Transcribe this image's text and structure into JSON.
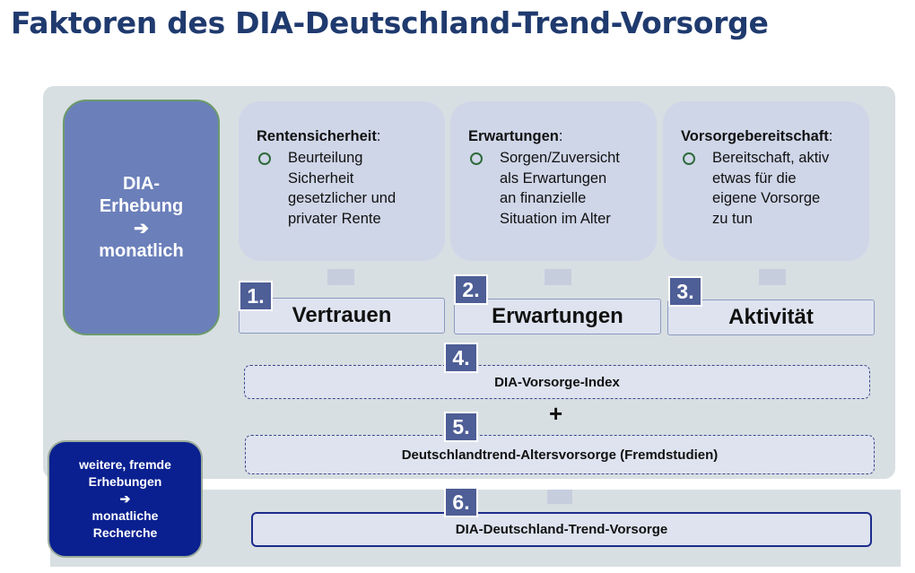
{
  "title": "Faktoren des DIA-Deutschland-Trend-Vorsorge",
  "dia_box": {
    "line1": "DIA-",
    "line2": "Erhebung",
    "arrow": "➔",
    "line3": "monatlich"
  },
  "factors": [
    {
      "heading": "Rentensicherheit",
      "colon": ":",
      "text": [
        "Beurteilung",
        "Sicherheit",
        "gesetzlicher und",
        "privater Rente"
      ]
    },
    {
      "heading": "Erwartungen",
      "colon": ":",
      "text": [
        "Sorgen/Zuversicht",
        "als Erwartungen",
        "an finanzielle",
        "Situation im Alter"
      ]
    },
    {
      "heading": "Vorsorgebereitschaft",
      "colon": ":",
      "text": [
        "Bereitschaft, aktiv",
        "etwas für die",
        "eigene Vorsorge",
        "zu tun"
      ]
    }
  ],
  "boxes": [
    {
      "num": "1.",
      "label": "Vertrauen"
    },
    {
      "num": "2.",
      "label": "Erwartungen"
    },
    {
      "num": "3.",
      "label": "Aktivität"
    }
  ],
  "index": {
    "num": "4.",
    "label": "DIA-Vorsorge-Index"
  },
  "plus": "+",
  "trend": {
    "num": "5.",
    "label": "Deutschlandtrend-Altersvorsorge (Fremdstudien)"
  },
  "weitere": {
    "line1": "weitere, fremde",
    "line2": "Erhebungen",
    "arrow": "➔",
    "line3": "monatliche",
    "line4": "Recherche"
  },
  "final": {
    "num": "6.",
    "label": "DIA-Deutschland-Trend-Vorsorge"
  },
  "colors": {
    "title": "#1f3a6e",
    "panel": "#d8dfe2",
    "dia_box": "#6b7fba",
    "number_badge": "#4e5e96",
    "weitere_box": "#0a2090"
  }
}
